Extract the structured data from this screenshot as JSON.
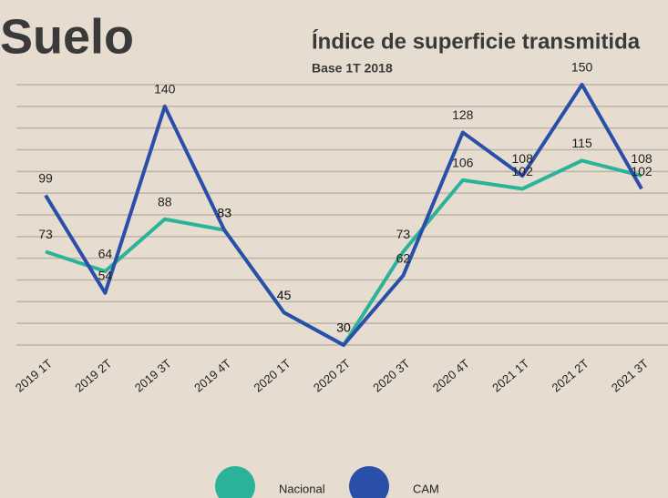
{
  "chart_data": {
    "type": "line",
    "title": "Suelo",
    "subtitle": "Índice de superficie transmitida",
    "note": "Base 1T 2018",
    "categories": [
      "2019 1T",
      "2019 2T",
      "2019 3T",
      "2019 4T",
      "2020 1T",
      "2020 2T",
      "2020 3T",
      "2020 4T",
      "2021 1T",
      "2021 2T",
      "2021 3T"
    ],
    "series": [
      {
        "name": "Nacional",
        "color": "#2bb39a",
        "values": [
          73,
          64,
          88,
          83,
          45,
          30,
          73,
          106,
          102,
          115,
          108
        ]
      },
      {
        "name": "CAM",
        "color": "#2a4fa8",
        "values": [
          99,
          54,
          140,
          83,
          45,
          30,
          62,
          128,
          108,
          150,
          102
        ]
      }
    ],
    "ylim": [
      30,
      150
    ],
    "yticks": [
      30,
      40,
      50,
      60,
      70,
      80,
      90,
      100,
      110,
      120,
      130,
      140,
      150
    ],
    "grid": true
  }
}
